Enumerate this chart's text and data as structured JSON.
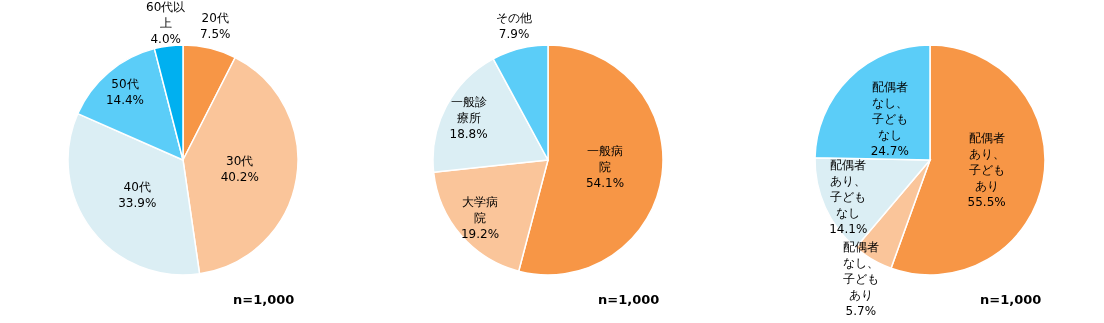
{
  "chart_data": [
    {
      "type": "pie",
      "categories": [
        "20代",
        "30代",
        "40代",
        "50代",
        "60代以上"
      ],
      "values": [
        7.5,
        40.2,
        33.9,
        14.4,
        4.0
      ],
      "colors": [
        "#f79646",
        "#fac59a",
        "#dbeef4",
        "#5bcdf8",
        "#00b0f0"
      ],
      "value_labels": [
        "7.5%",
        "40.2%",
        "33.9%",
        "14.4%",
        "4.0%"
      ],
      "annotations": [
        "n=1,000"
      ]
    },
    {
      "type": "pie",
      "categories": [
        "一般病院",
        "大学病院",
        "一般診療所",
        "その他"
      ],
      "values": [
        54.1,
        19.2,
        18.8,
        7.9
      ],
      "colors": [
        "#f79646",
        "#fac59a",
        "#dbeef4",
        "#5bcdf8"
      ],
      "value_labels": [
        "54.1%",
        "19.2%",
        "18.8%",
        "7.9%"
      ],
      "annotations": [
        "n=1,000"
      ]
    },
    {
      "type": "pie",
      "categories": [
        "配偶者あり、子どもあり",
        "配偶者なし、子どもあり",
        "配偶者あり、子どもなし",
        "配偶者なし、子どもなし"
      ],
      "values": [
        55.5,
        5.7,
        14.1,
        24.7
      ],
      "colors": [
        "#f79646",
        "#fac59a",
        "#dbeef4",
        "#5bcdf8"
      ],
      "value_labels": [
        "55.5%",
        "5.7%",
        "14.1%",
        "24.7%"
      ],
      "annotations": [
        "n=1,000"
      ]
    }
  ]
}
